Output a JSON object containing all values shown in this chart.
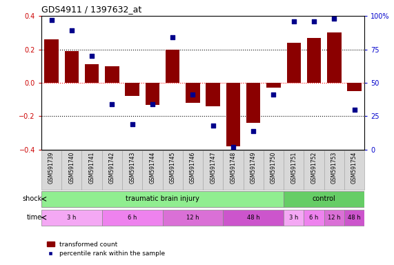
{
  "title": "GDS4911 / 1397632_at",
  "samples": [
    "GSM591739",
    "GSM591740",
    "GSM591741",
    "GSM591742",
    "GSM591743",
    "GSM591744",
    "GSM591745",
    "GSM591746",
    "GSM591747",
    "GSM591748",
    "GSM591749",
    "GSM591750",
    "GSM591751",
    "GSM591752",
    "GSM591753",
    "GSM591754"
  ],
  "bar_values": [
    0.26,
    0.19,
    0.11,
    0.1,
    -0.08,
    -0.13,
    0.2,
    -0.12,
    -0.14,
    -0.38,
    -0.24,
    -0.03,
    0.24,
    0.27,
    0.3,
    -0.05
  ],
  "dot_values": [
    97,
    89,
    70,
    34,
    19,
    34,
    84,
    41,
    18,
    2,
    14,
    41,
    96,
    96,
    98,
    30
  ],
  "bar_color": "#8B0000",
  "dot_color": "#00008B",
  "ylim_left": [
    -0.4,
    0.4
  ],
  "ylim_right": [
    0,
    100
  ],
  "yticks_left": [
    -0.4,
    -0.2,
    0.0,
    0.2,
    0.4
  ],
  "yticks_right": [
    0,
    25,
    50,
    75,
    100
  ],
  "ytick_labels_right": [
    "0",
    "25",
    "50",
    "75",
    "100%"
  ],
  "time_groups": [
    {
      "text": "3 h",
      "start": 0,
      "end": 3,
      "color": "#F4A8F4"
    },
    {
      "text": "6 h",
      "start": 3,
      "end": 6,
      "color": "#EE82EE"
    },
    {
      "text": "12 h",
      "start": 6,
      "end": 9,
      "color": "#DA70D6"
    },
    {
      "text": "48 h",
      "start": 9,
      "end": 12,
      "color": "#CC55CC"
    },
    {
      "text": "3 h",
      "start": 12,
      "end": 13,
      "color": "#F4A8F4"
    },
    {
      "text": "6 h",
      "start": 13,
      "end": 14,
      "color": "#EE82EE"
    },
    {
      "text": "12 h",
      "start": 14,
      "end": 15,
      "color": "#DA70D6"
    },
    {
      "text": "48 h",
      "start": 15,
      "end": 16,
      "color": "#CC55CC"
    }
  ],
  "shock_groups": [
    {
      "text": "traumatic brain injury",
      "start": 0,
      "end": 12,
      "color": "#90EE90"
    },
    {
      "text": "control",
      "start": 12,
      "end": 16,
      "color": "#66CD66"
    }
  ],
  "legend_bar_label": "transformed count",
  "legend_dot_label": "percentile rank within the sample",
  "zero_line_color": "#FF0000",
  "bg_color": "#FFFFFF",
  "tick_label_color_left": "#CC0000",
  "tick_label_color_right": "#0000CC",
  "label_box_color": "#D8D8D8",
  "label_box_edge": "#AAAAAA"
}
